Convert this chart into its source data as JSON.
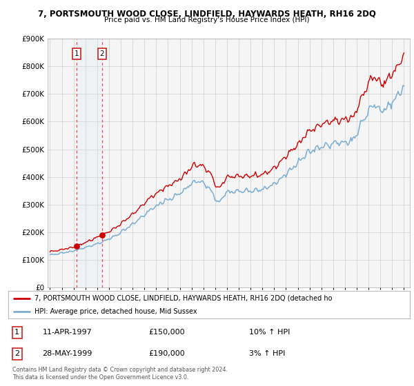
{
  "title": "7, PORTSMOUTH WOOD CLOSE, LINDFIELD, HAYWARDS HEATH, RH16 2DQ",
  "subtitle": "Price paid vs. HM Land Registry's House Price Index (HPI)",
  "legend_line1": "7, PORTSMOUTH WOOD CLOSE, LINDFIELD, HAYWARDS HEATH, RH16 2DQ (detached ho",
  "legend_line2": "HPI: Average price, detached house, Mid Sussex",
  "footer1": "Contains HM Land Registry data © Crown copyright and database right 2024.",
  "footer2": "This data is licensed under the Open Government Licence v3.0.",
  "sale1_date": "11-APR-1997",
  "sale1_price": "£150,000",
  "sale1_hpi": "10% ↑ HPI",
  "sale1_year": 1997.28,
  "sale1_value": 150000,
  "sale2_date": "28-MAY-1999",
  "sale2_price": "£190,000",
  "sale2_hpi": "3% ↑ HPI",
  "sale2_year": 1999.41,
  "sale2_value": 190000,
  "ylim": [
    0,
    900000
  ],
  "xlim_left": 1994.8,
  "xlim_right": 2025.5,
  "red_color": "#cc0000",
  "blue_color": "#7aadd4",
  "vline_color": "#ee4444",
  "shade_color": "#deeaf5",
  "background_color": "#ffffff",
  "plot_bg_color": "#f5f5f5"
}
